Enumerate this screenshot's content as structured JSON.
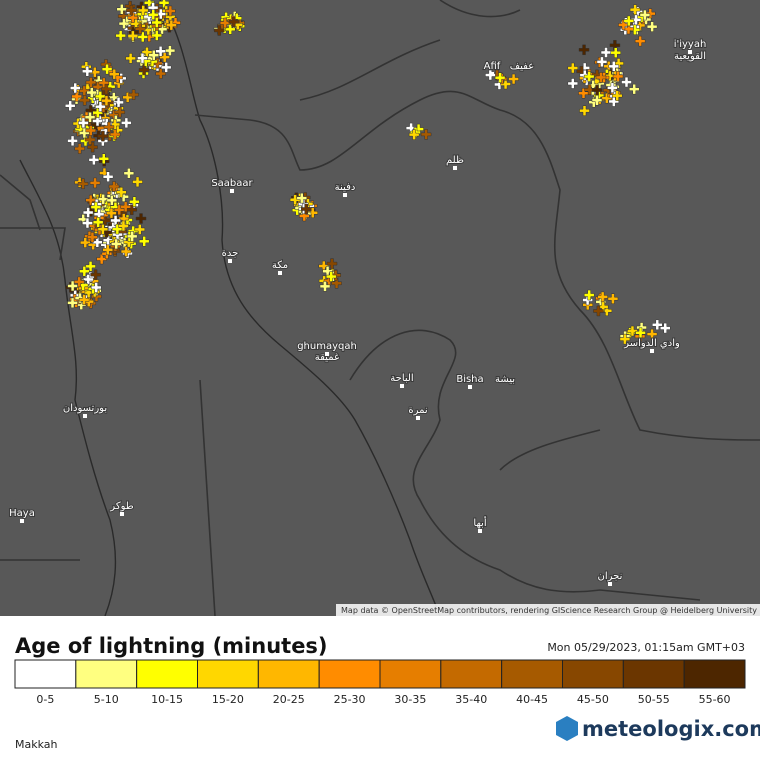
{
  "map": {
    "labels": [
      "Saabaar",
      "جدة",
      "مكة",
      "ghumayqah",
      "غميقة",
      "بورتسودان",
      "Haya",
      "طوكر",
      "Afif",
      "عفيف",
      "ظلم",
      "دفينة",
      "الباحة",
      "Bisha",
      "بيشة",
      "نمرة",
      "أبها",
      "نجران",
      "وادي الدواسر",
      "i'iyyah",
      "القويعية"
    ],
    "attribution": "Map data © OpenStreetMap contributors, rendering GIScience Research Group @ Heidelberg University"
  },
  "legend": {
    "title": "Age of lightning (minutes)",
    "timestamp": "Mon 05/29/2023, 01:15am GMT+03",
    "bins": [
      {
        "label": "0-5",
        "color": "#ffffff"
      },
      {
        "label": "5-10",
        "color": "#ffff80"
      },
      {
        "label": "10-15",
        "color": "#ffff00"
      },
      {
        "label": "15-20",
        "color": "#ffd700"
      },
      {
        "label": "20-25",
        "color": "#ffb700"
      },
      {
        "label": "25-30",
        "color": "#ff8c00"
      },
      {
        "label": "30-35",
        "color": "#e67e00"
      },
      {
        "label": "35-40",
        "color": "#c46a00"
      },
      {
        "label": "40-45",
        "color": "#a65a00"
      },
      {
        "label": "45-50",
        "color": "#874700"
      },
      {
        "label": "50-55",
        "color": "#6b3600"
      },
      {
        "label": "55-60",
        "color": "#4d2600"
      }
    ]
  },
  "footer": {
    "location": "Makkah",
    "brand": "meteologix.com"
  }
}
